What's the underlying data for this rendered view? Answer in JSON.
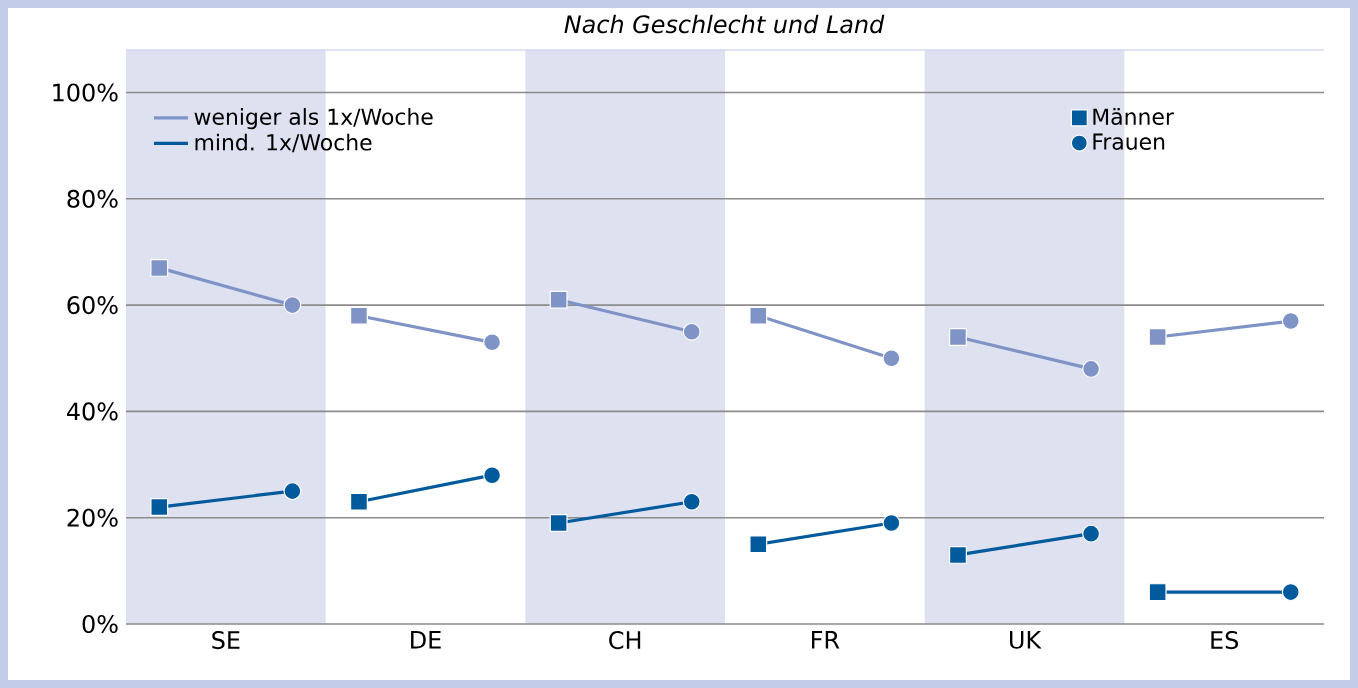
{
  "chart_data": {
    "type": "line",
    "title": "Nach Geschlecht und Land",
    "categories": [
      null,
      "SE",
      null,
      null,
      "DE",
      null,
      null,
      "CH",
      null,
      null,
      "FR",
      null,
      null,
      "UK",
      null,
      null,
      "ES",
      null
    ],
    "ylim": [
      0,
      108
    ],
    "yticks": [
      {
        "value": 0,
        "label": "0%"
      },
      {
        "value": 20,
        "label": "20%"
      },
      {
        "value": 40,
        "label": "40%"
      },
      {
        "value": 60,
        "label": "60%"
      },
      {
        "value": 80,
        "label": "80%"
      },
      {
        "value": 100,
        "label": "100%"
      }
    ],
    "grid": "y",
    "legend": "top",
    "series": [
      {
        "type": "line",
        "name": "weniger als 1x/Woche",
        "color": "#7f93c6",
        "values": [
          67,
          null,
          60,
          null,
          null,
          null,
          null,
          null,
          null,
          null,
          null,
          null,
          null,
          null,
          null,
          null,
          null,
          null
        ]
      },
      {
        "type": "line",
        "color": "#7f93c6",
        "values": [
          null,
          null,
          null,
          58,
          null,
          53,
          null,
          null,
          null,
          null,
          null,
          null,
          null,
          null,
          null,
          null,
          null,
          null
        ]
      },
      {
        "type": "line",
        "color": "#7f93c6",
        "values": [
          null,
          null,
          null,
          null,
          null,
          null,
          61,
          null,
          55,
          null,
          null,
          null,
          null,
          null,
          null,
          null,
          null,
          null
        ]
      },
      {
        "type": "line",
        "color": "#7f93c6",
        "values": [
          null,
          null,
          null,
          null,
          null,
          null,
          null,
          null,
          null,
          58,
          null,
          50,
          null,
          null,
          null,
          null,
          null,
          null
        ]
      },
      {
        "type": "line",
        "color": "#7f93c6",
        "values": [
          null,
          null,
          null,
          null,
          null,
          null,
          null,
          null,
          null,
          null,
          null,
          null,
          54,
          null,
          48,
          null,
          null,
          null
        ]
      },
      {
        "type": "line",
        "color": "#7f93c6",
        "values": [
          null,
          null,
          null,
          null,
          null,
          null,
          null,
          null,
          null,
          null,
          null,
          null,
          null,
          null,
          null,
          54,
          null,
          57
        ]
      },
      {
        "type": "line",
        "name": "mind. 1x/Woche",
        "color": "#005a9c",
        "values": [
          22,
          null,
          25,
          null,
          null,
          null,
          null,
          null,
          null,
          null,
          null,
          null,
          null,
          null,
          null,
          null,
          null,
          null
        ]
      },
      {
        "type": "line",
        "color": "#005a9c",
        "values": [
          null,
          null,
          null,
          23,
          null,
          28,
          null,
          null,
          null,
          null,
          null,
          null,
          null,
          null,
          null,
          null,
          null,
          null
        ]
      },
      {
        "type": "line",
        "color": "#005a9c",
        "values": [
          null,
          null,
          null,
          null,
          null,
          null,
          19,
          null,
          23,
          null,
          null,
          null,
          null,
          null,
          null,
          null,
          null,
          null
        ]
      },
      {
        "type": "line",
        "color": "#005a9c",
        "values": [
          null,
          null,
          null,
          null,
          null,
          null,
          null,
          null,
          null,
          15,
          null,
          19,
          null,
          null,
          null,
          null,
          null,
          null
        ]
      },
      {
        "type": "line",
        "color": "#005a9c",
        "values": [
          null,
          null,
          null,
          null,
          null,
          null,
          null,
          null,
          null,
          null,
          null,
          null,
          13,
          null,
          17,
          null,
          null,
          null
        ]
      },
      {
        "type": "line",
        "color": "#005a9c",
        "values": [
          null,
          null,
          null,
          null,
          null,
          null,
          null,
          null,
          null,
          null,
          null,
          null,
          null,
          null,
          null,
          6,
          null,
          6
        ]
      },
      {
        "type": "scatter",
        "color": "#7f93c6",
        "marker": "square",
        "values": [
          67,
          null,
          null,
          58,
          null,
          null,
          61,
          null,
          null,
          58,
          null,
          null,
          54,
          null,
          null,
          54,
          null,
          null
        ]
      },
      {
        "type": "scatter",
        "color": "#7f93c6",
        "marker": "circle",
        "values": [
          null,
          null,
          60,
          null,
          null,
          53,
          null,
          null,
          55,
          null,
          null,
          50,
          null,
          null,
          48,
          null,
          null,
          57
        ]
      },
      {
        "type": "scatter",
        "name": "Männer",
        "color": "#005a9c",
        "marker": "square",
        "values": [
          22,
          null,
          null,
          23,
          null,
          null,
          19,
          null,
          null,
          15,
          null,
          null,
          13,
          null,
          null,
          6,
          null,
          null
        ]
      },
      {
        "type": "scatter",
        "name": "Frauen",
        "color": "#005a9c",
        "marker": "circle",
        "values": [
          null,
          null,
          25,
          null,
          null,
          28,
          null,
          null,
          23,
          null,
          null,
          19,
          null,
          null,
          17,
          null,
          null,
          6
        ]
      }
    ]
  }
}
